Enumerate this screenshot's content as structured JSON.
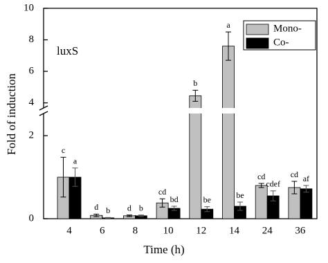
{
  "chart_data": {
    "type": "bar",
    "annotation": "luxS",
    "x_label": "Time (h)",
    "y_label": "Fold of induction",
    "categories": [
      "4",
      "6",
      "8",
      "10",
      "12",
      "14",
      "24",
      "36"
    ],
    "series": [
      {
        "name": "Mono-",
        "color": "#c0c0c0",
        "values": [
          1.0,
          0.08,
          0.07,
          0.38,
          4.45,
          7.6,
          0.8,
          0.75
        ],
        "errors": [
          0.48,
          0.03,
          0.02,
          0.1,
          0.35,
          0.9,
          0.05,
          0.15
        ],
        "letters": [
          "c",
          "d",
          "d",
          "cd",
          "b",
          "a",
          "cd",
          "cd"
        ]
      },
      {
        "name": "Co-",
        "color": "#000000",
        "values": [
          1.0,
          0.02,
          0.07,
          0.25,
          0.23,
          0.3,
          0.55,
          0.72
        ],
        "errors": [
          0.22,
          0.01,
          0.02,
          0.05,
          0.06,
          0.1,
          0.12,
          0.08
        ],
        "letters": [
          "a",
          "b",
          "b",
          "bd",
          "be",
          "be",
          "cdef",
          "af"
        ]
      }
    ],
    "ylim": [
      0,
      10
    ],
    "y_break": [
      2.6,
      3.5
    ],
    "yticks": [
      0,
      2,
      4,
      6,
      8,
      10
    ],
    "legend": "upper right"
  }
}
